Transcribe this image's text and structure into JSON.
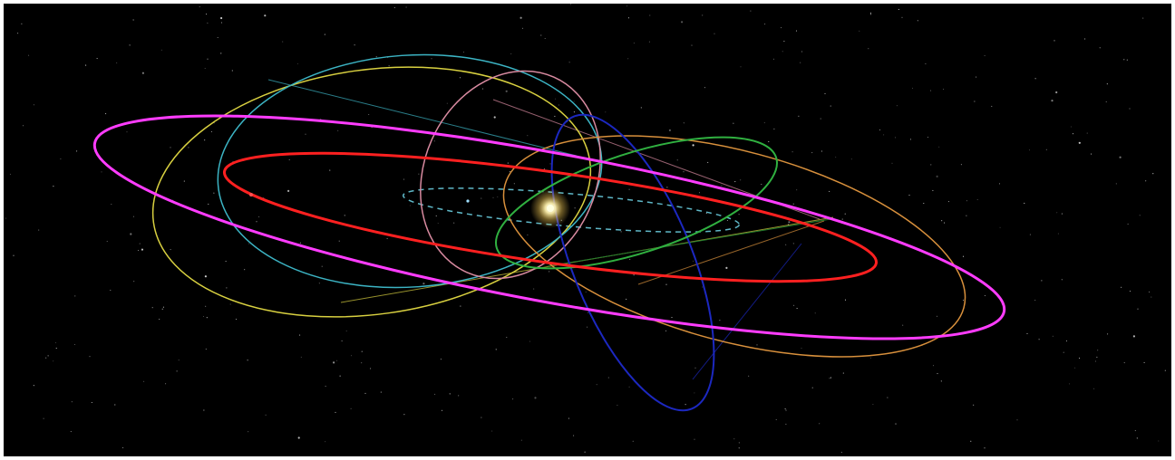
{
  "scene": {
    "background": "#000000",
    "frame_color": "#ffffff",
    "star_color": "#ffffff",
    "sun": {
      "core": "#ffffe0",
      "glow": "#f5d060"
    },
    "orbits": [
      {
        "id": "dashed-inner",
        "color": "#5fb8c8",
        "dashed": true
      },
      {
        "id": "magenta",
        "color": "#ff3cff",
        "weight": "heavy"
      },
      {
        "id": "red",
        "color": "#ff2020",
        "weight": "heavy"
      },
      {
        "id": "yellow",
        "color": "#d8d040",
        "weight": "light"
      },
      {
        "id": "cyan",
        "color": "#3cb4c4",
        "weight": "light"
      },
      {
        "id": "pink",
        "color": "#d88aa0",
        "weight": "light"
      },
      {
        "id": "blue",
        "color": "#1c28c0",
        "weight": "medium"
      },
      {
        "id": "orange",
        "color": "#d8903c",
        "weight": "light"
      },
      {
        "id": "green",
        "color": "#30b040",
        "weight": "medium"
      }
    ]
  }
}
